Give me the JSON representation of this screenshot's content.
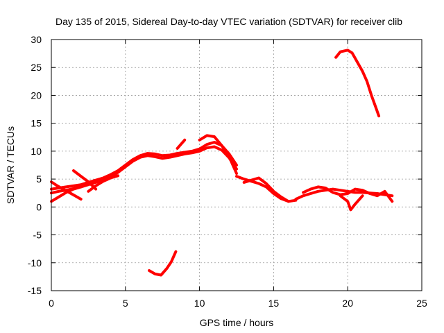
{
  "chart_data": {
    "type": "line",
    "title": "Day 135 of 2015, Sidereal Day-to-day VTEC variation (SDTVAR) for receiver clib",
    "xlabel": "GPS time / hours",
    "ylabel": "SDTVAR / TECUs",
    "xlim": [
      0,
      25
    ],
    "ylim": [
      -15,
      30
    ],
    "x_ticks": [
      "0",
      "5",
      "10",
      "15",
      "20",
      "25"
    ],
    "y_ticks": [
      "-15",
      "-10",
      "-5",
      "0",
      "5",
      "10",
      "15",
      "20",
      "25",
      "30"
    ],
    "grid": true,
    "series_color": "#ff0000",
    "series": [
      {
        "name": "main-a",
        "x": [
          0,
          0.5,
          1,
          1.5,
          2,
          2.5,
          3,
          3.5,
          4,
          4.5,
          5,
          5.5,
          6,
          6.5,
          7,
          7.5,
          8,
          8.5,
          9,
          9.5,
          10,
          10.5,
          11,
          11.5,
          12,
          12.5
        ],
        "y": [
          3.2,
          3.4,
          3.6,
          3.8,
          4.0,
          4.4,
          4.8,
          5.2,
          5.8,
          6.5,
          7.5,
          8.5,
          9.2,
          9.6,
          9.5,
          9.2,
          9.3,
          9.6,
          9.8,
          10.0,
          10.4,
          11.2,
          11.6,
          11.0,
          9.5,
          7.5
        ]
      },
      {
        "name": "main-b",
        "x": [
          0,
          0.5,
          1,
          1.5,
          2,
          2.5,
          3,
          3.5,
          4,
          4.5,
          5,
          5.5,
          6,
          6.5,
          7,
          7.5,
          8,
          8.5,
          9,
          9.5,
          10,
          10.5,
          11,
          11.5,
          12,
          12.5
        ],
        "y": [
          2.5,
          2.8,
          3.0,
          3.3,
          3.6,
          4.0,
          4.4,
          4.9,
          5.4,
          6.2,
          7.2,
          8.2,
          8.9,
          9.2,
          9.0,
          8.7,
          8.9,
          9.2,
          9.5,
          9.7,
          10.0,
          10.6,
          10.8,
          10.2,
          8.8,
          6.8
        ]
      },
      {
        "name": "early-1",
        "x": [
          0,
          0.4,
          0.8,
          1.2,
          1.6,
          2.0
        ],
        "y": [
          4.5,
          3.8,
          3.2,
          2.6,
          2.0,
          1.4
        ]
      },
      {
        "name": "early-2",
        "x": [
          0,
          0.5,
          1.0,
          1.5,
          2.0
        ],
        "y": [
          1.0,
          1.8,
          2.6,
          3.2,
          3.6
        ]
      },
      {
        "name": "early-3",
        "x": [
          1.5,
          2.0,
          2.5,
          3.0
        ],
        "y": [
          6.5,
          5.5,
          4.5,
          3.2
        ]
      },
      {
        "name": "early-4",
        "x": [
          2.5,
          3.0,
          3.5,
          4.0,
          4.5
        ],
        "y": [
          2.8,
          3.8,
          4.6,
          5.2,
          5.6
        ]
      },
      {
        "name": "hump-spur",
        "x": [
          8.5,
          9.0
        ],
        "y": [
          10.5,
          12.0
        ]
      },
      {
        "name": "hump-2",
        "x": [
          10.0,
          10.5,
          11.0,
          11.5,
          12.0,
          12.5
        ],
        "y": [
          12.0,
          12.8,
          12.6,
          11.0,
          9.0,
          6.0
        ]
      },
      {
        "name": "decline",
        "x": [
          12.5,
          13.0,
          13.5,
          14.0,
          14.5,
          15.0,
          15.5,
          16.0,
          16.5
        ],
        "y": [
          5.5,
          5.0,
          4.6,
          4.2,
          3.6,
          2.4,
          1.5,
          1.0,
          1.2
        ]
      },
      {
        "name": "decline-b",
        "x": [
          13.0,
          13.5,
          14.0,
          14.5,
          15.0,
          15.5,
          16.0
        ],
        "y": [
          4.4,
          4.8,
          5.2,
          4.2,
          2.8,
          1.8,
          1.0
        ]
      },
      {
        "name": "late",
        "x": [
          16.5,
          17.0,
          17.5,
          18.0,
          18.5,
          19.0,
          19.5,
          20.0,
          20.5,
          21.0,
          21.5,
          22.0,
          22.5,
          23.0
        ],
        "y": [
          1.4,
          2.0,
          2.4,
          2.8,
          3.0,
          3.2,
          3.0,
          2.8,
          2.6,
          2.6,
          2.5,
          2.4,
          2.2,
          2.0
        ]
      },
      {
        "name": "late-b",
        "x": [
          17.0,
          17.5,
          18.0,
          18.5,
          19.0,
          19.5,
          20.0,
          20.5,
          21.0,
          21.5,
          22.0,
          22.5,
          23.0
        ],
        "y": [
          2.6,
          3.2,
          3.6,
          3.4,
          2.6,
          2.2,
          2.4,
          3.2,
          3.0,
          2.4,
          2.0,
          2.8,
          1.0
        ]
      },
      {
        "name": "late-dip",
        "x": [
          19.5,
          20.0,
          20.2,
          20.5,
          21.0
        ],
        "y": [
          2.0,
          1.0,
          -0.5,
          0.5,
          2.0
        ]
      },
      {
        "name": "high-arc",
        "x": [
          19.2,
          19.5,
          20.0,
          20.3,
          20.6,
          21.0,
          21.3,
          21.6,
          21.9,
          22.1
        ],
        "y": [
          26.8,
          27.8,
          28.1,
          27.6,
          26.2,
          24.3,
          22.5,
          20.0,
          17.8,
          16.3
        ]
      },
      {
        "name": "low-arc",
        "x": [
          6.6,
          7.0,
          7.4,
          7.8,
          8.1,
          8.4
        ],
        "y": [
          -11.4,
          -12.0,
          -12.2,
          -11.0,
          -9.8,
          -8.0
        ]
      }
    ]
  }
}
